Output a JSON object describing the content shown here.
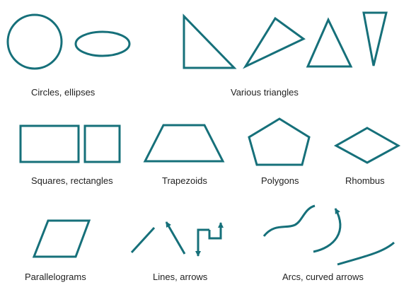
{
  "colors": {
    "stroke": "#16707a",
    "text": "#222222",
    "background": "#ffffff"
  },
  "labels": {
    "circles": "Circles, ellipses",
    "triangles": "Various triangles",
    "squares": "Squares, rectangles",
    "trapezoids": "Trapezoids",
    "polygons": "Polygons",
    "rhombus": "Rhombus",
    "parallelograms": "Parallelograms",
    "lines": "Lines, arrows",
    "arcs": "Arcs, curved arrows"
  }
}
